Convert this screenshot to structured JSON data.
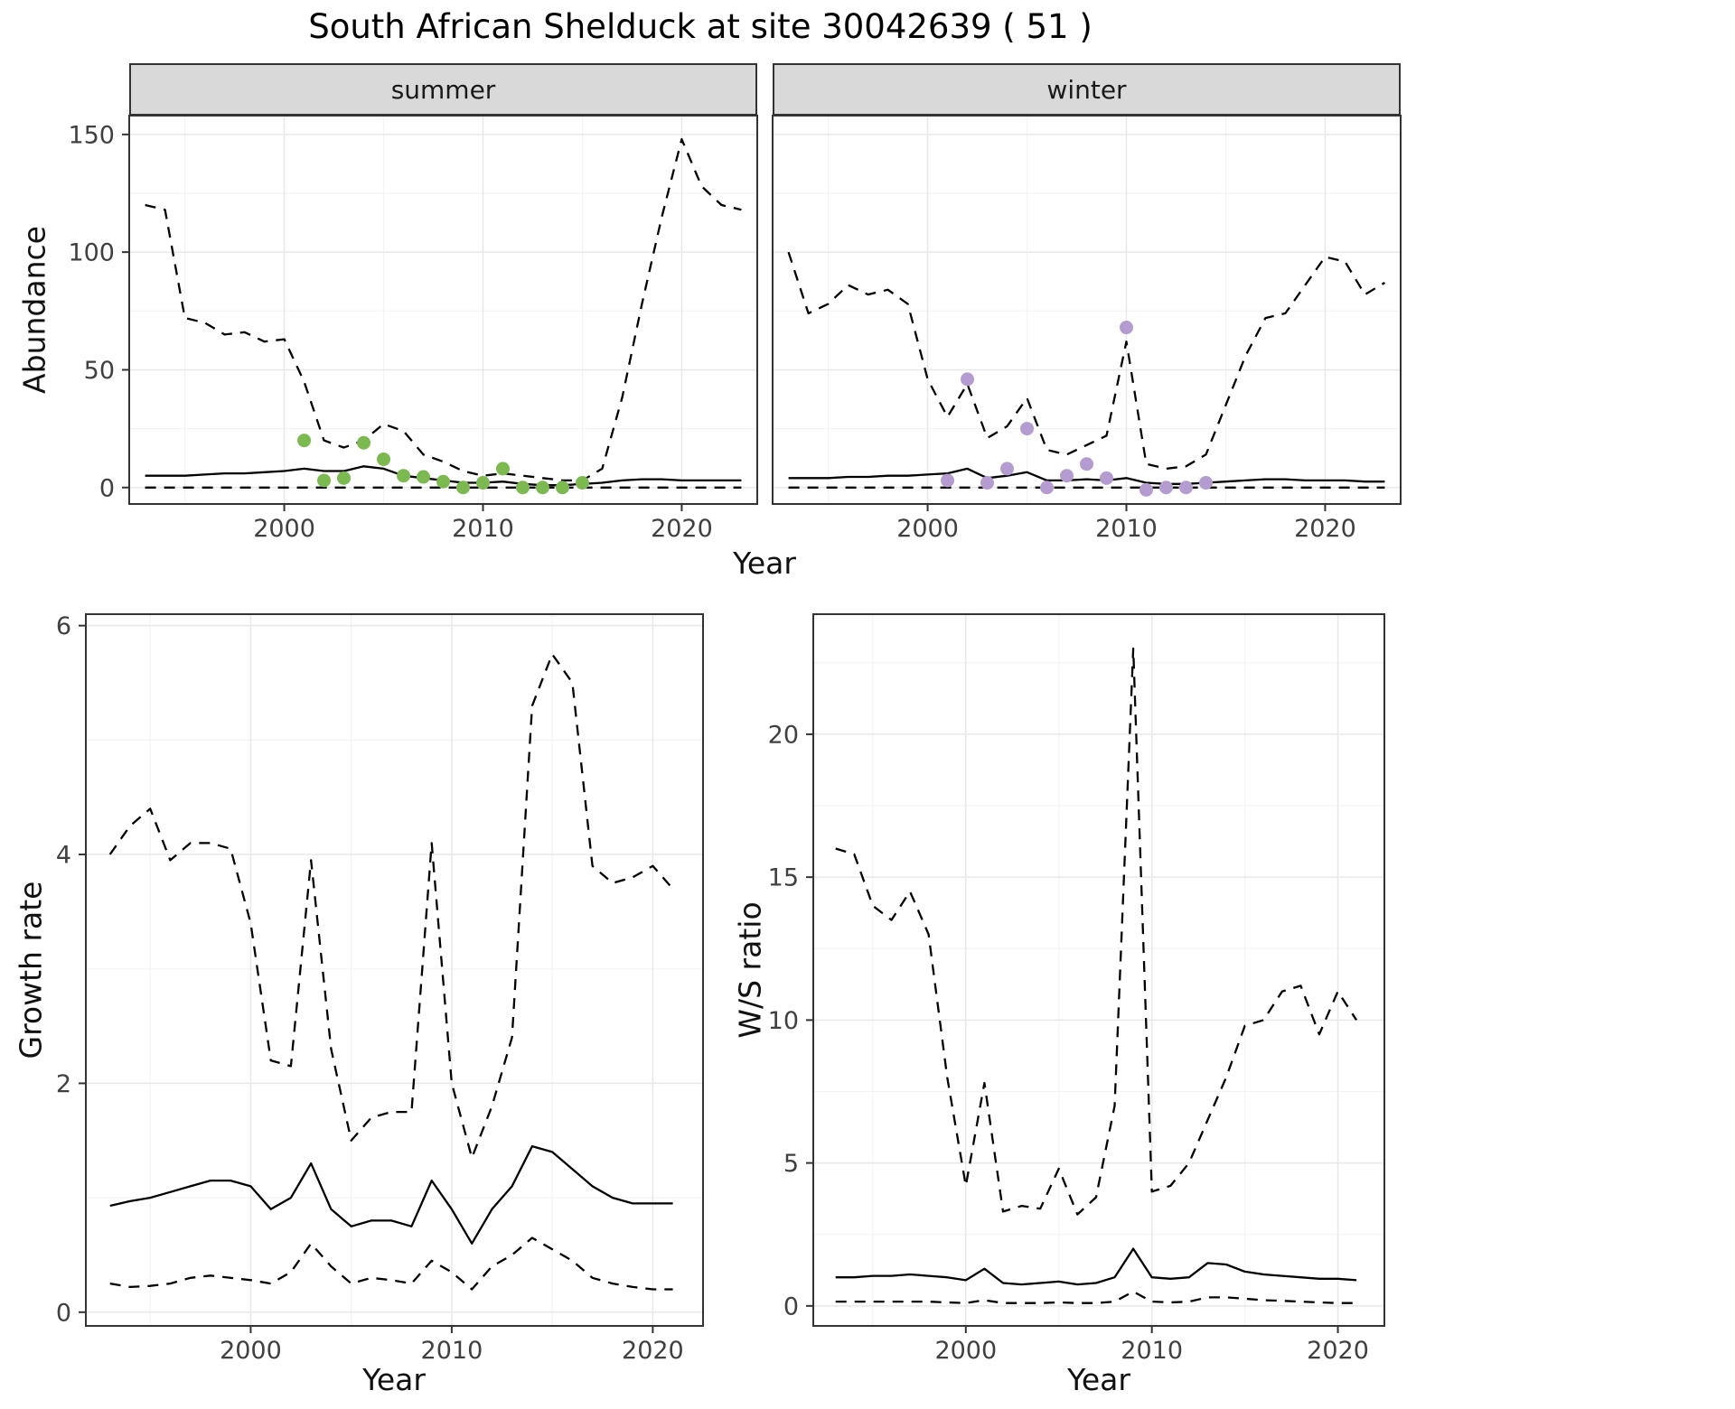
{
  "title": "South African Shelduck at site 30042639 ( 51 )",
  "style": {
    "accent_green": "#7cb950",
    "accent_purple": "#b49bd0",
    "line_color": "#000000",
    "panel_border": "#333333",
    "strip_fill": "#d9d9d9",
    "grid_major": "#e8e8e8",
    "grid_minor": "#f4f4f4",
    "tick_label_color": "#404040"
  },
  "top_figure": {
    "ylabel": "Abundance",
    "xlabel": "Year",
    "facets": [
      {
        "label": "summer"
      },
      {
        "label": "winter"
      }
    ]
  },
  "growth_figure": {
    "ylabel": "Growth rate",
    "xlabel": "Year"
  },
  "ws_figure": {
    "ylabel": "W/S ratio",
    "xlabel": "Year"
  },
  "chart_data": [
    {
      "id": "abundance-summer",
      "type": "line",
      "title": "summer",
      "xlabel": "Year",
      "ylabel": "Abundance",
      "xlim": [
        1992.2,
        2023.8
      ],
      "ylim": [
        -7,
        158
      ],
      "x_ticks": [
        2000,
        2010,
        2020
      ],
      "y_ticks": [
        0,
        50,
        100,
        150
      ],
      "x": [
        1993,
        1994,
        1995,
        1996,
        1997,
        1998,
        1999,
        2000,
        2001,
        2002,
        2003,
        2004,
        2005,
        2006,
        2007,
        2008,
        2009,
        2010,
        2011,
        2012,
        2013,
        2014,
        2015,
        2016,
        2017,
        2018,
        2019,
        2020,
        2021,
        2022,
        2023
      ],
      "series": [
        {
          "name": "upper_ci",
          "style": "dashed",
          "values": [
            120,
            118,
            72,
            70,
            65,
            66,
            62,
            63,
            45,
            20,
            17,
            20,
            27,
            24,
            14,
            11,
            7,
            5,
            6,
            5,
            4,
            3,
            3,
            8,
            38,
            78,
            115,
            148,
            128,
            120,
            118
          ]
        },
        {
          "name": "median",
          "style": "solid",
          "values": [
            5,
            5,
            5,
            5.5,
            6,
            6,
            6.5,
            7,
            8,
            7,
            7,
            9,
            8,
            5,
            4,
            3,
            2,
            2,
            2.5,
            1.5,
            1,
            1,
            1.5,
            2,
            3,
            3.5,
            3.5,
            3,
            3,
            3,
            3
          ]
        },
        {
          "name": "lower_ci",
          "style": "dashed",
          "values": [
            0,
            0,
            0,
            0,
            0,
            0,
            0,
            0,
            0,
            0,
            0,
            0,
            0,
            0,
            0,
            0,
            0,
            0,
            0,
            0,
            0,
            0,
            0,
            0,
            0,
            0,
            0,
            0,
            0,
            0,
            0
          ]
        }
      ],
      "points": {
        "name": "observed-counts-summer",
        "color": "#7cb950",
        "x": [
          2001,
          2002,
          2003,
          2004,
          2005,
          2006,
          2007,
          2008,
          2009,
          2010,
          2011,
          2012,
          2013,
          2014,
          2015
        ],
        "y": [
          20,
          3,
          4,
          19,
          12,
          5,
          4.5,
          2.5,
          0,
          2,
          8,
          0,
          0,
          0,
          2
        ]
      }
    },
    {
      "id": "abundance-winter",
      "type": "line",
      "title": "winter",
      "xlabel": "Year",
      "ylabel": "Abundance",
      "xlim": [
        1992.2,
        2023.8
      ],
      "ylim": [
        -7,
        158
      ],
      "x_ticks": [
        2000,
        2010,
        2020
      ],
      "y_ticks": [
        0,
        50,
        100,
        150
      ],
      "x": [
        1993,
        1994,
        1995,
        1996,
        1997,
        1998,
        1999,
        2000,
        2001,
        2002,
        2003,
        2004,
        2005,
        2006,
        2007,
        2008,
        2009,
        2010,
        2011,
        2012,
        2013,
        2014,
        2015,
        2016,
        2017,
        2018,
        2019,
        2020,
        2021,
        2022,
        2023
      ],
      "series": [
        {
          "name": "upper_ci",
          "style": "dashed",
          "values": [
            100,
            74,
            78,
            86,
            82,
            84,
            78,
            46,
            30,
            44,
            21,
            26,
            38,
            16,
            14,
            18,
            22,
            62,
            10,
            8,
            9,
            14,
            35,
            56,
            72,
            74,
            86,
            98,
            96,
            82,
            87
          ]
        },
        {
          "name": "median",
          "style": "solid",
          "values": [
            4,
            4,
            4,
            4.5,
            4.5,
            5,
            5,
            5.5,
            6,
            8,
            4,
            5,
            6.5,
            3,
            3,
            3.5,
            3,
            4,
            2,
            1.5,
            1.5,
            2,
            2.5,
            3,
            3.5,
            3.5,
            3,
            3,
            3,
            2.5,
            2.5
          ]
        },
        {
          "name": "lower_ci",
          "style": "dashed",
          "values": [
            0,
            0,
            0,
            0,
            0,
            0,
            0,
            0,
            0,
            0,
            0,
            0,
            0,
            0,
            0,
            0,
            0,
            0,
            0,
            0,
            0,
            0,
            0,
            0,
            0,
            0,
            0,
            0,
            0,
            0,
            0
          ]
        }
      ],
      "points": {
        "name": "observed-counts-winter",
        "color": "#b49bd0",
        "x": [
          2001,
          2002,
          2003,
          2004,
          2005,
          2006,
          2007,
          2008,
          2009,
          2010,
          2011,
          2012,
          2013,
          2014
        ],
        "y": [
          3,
          46,
          2,
          8,
          25,
          0,
          5,
          10,
          4,
          68,
          -1,
          0,
          0,
          2
        ]
      }
    },
    {
      "id": "growth-rate",
      "type": "line",
      "title": "Growth rate",
      "xlabel": "Year",
      "ylabel": "Growth rate",
      "xlim": [
        1991.8,
        2022.5
      ],
      "ylim": [
        -0.12,
        6.1
      ],
      "x_ticks": [
        2000,
        2010,
        2020
      ],
      "y_ticks": [
        0,
        2,
        4,
        6
      ],
      "x": [
        1993,
        1994,
        1995,
        1996,
        1997,
        1998,
        1999,
        2000,
        2001,
        2002,
        2003,
        2004,
        2005,
        2006,
        2007,
        2008,
        2009,
        2010,
        2011,
        2012,
        2013,
        2014,
        2015,
        2016,
        2017,
        2018,
        2019,
        2020,
        2021
      ],
      "series": [
        {
          "name": "upper_ci",
          "style": "dashed",
          "values": [
            4.0,
            4.25,
            4.4,
            3.95,
            4.1,
            4.1,
            4.05,
            3.4,
            2.2,
            2.15,
            3.95,
            2.3,
            1.5,
            1.7,
            1.75,
            1.75,
            4.1,
            2.0,
            1.35,
            1.8,
            2.4,
            5.3,
            5.75,
            5.5,
            3.9,
            3.75,
            3.8,
            3.9,
            3.7
          ]
        },
        {
          "name": "median",
          "style": "solid",
          "values": [
            0.93,
            0.97,
            1.0,
            1.05,
            1.1,
            1.15,
            1.15,
            1.1,
            0.9,
            1.0,
            1.3,
            0.9,
            0.75,
            0.8,
            0.8,
            0.75,
            1.15,
            0.9,
            0.6,
            0.9,
            1.1,
            1.45,
            1.4,
            1.25,
            1.1,
            1.0,
            0.95,
            0.95,
            0.95
          ]
        },
        {
          "name": "lower_ci",
          "style": "dashed",
          "values": [
            0.25,
            0.22,
            0.23,
            0.25,
            0.3,
            0.32,
            0.3,
            0.28,
            0.25,
            0.35,
            0.6,
            0.4,
            0.25,
            0.3,
            0.28,
            0.25,
            0.45,
            0.35,
            0.2,
            0.4,
            0.5,
            0.65,
            0.55,
            0.45,
            0.3,
            0.25,
            0.22,
            0.2,
            0.2
          ]
        }
      ]
    },
    {
      "id": "ws-ratio",
      "type": "line",
      "title": "W/S ratio",
      "xlabel": "Year",
      "ylabel": "W/S ratio",
      "xlim": [
        1991.8,
        2022.5
      ],
      "ylim": [
        -0.7,
        24.2
      ],
      "x_ticks": [
        2000,
        2010,
        2020
      ],
      "y_ticks": [
        0,
        5,
        10,
        15,
        20
      ],
      "x": [
        1993,
        1994,
        1995,
        1996,
        1997,
        1998,
        1999,
        2000,
        2001,
        2002,
        2003,
        2004,
        2005,
        2006,
        2007,
        2008,
        2009,
        2010,
        2011,
        2012,
        2013,
        2014,
        2015,
        2016,
        2017,
        2018,
        2019,
        2020,
        2021
      ],
      "series": [
        {
          "name": "upper_ci",
          "style": "dashed",
          "values": [
            16,
            15.8,
            14,
            13.5,
            14.5,
            13,
            8,
            4.2,
            7.8,
            3.3,
            3.5,
            3.4,
            4.8,
            3.2,
            3.8,
            7.0,
            23,
            4.0,
            4.2,
            5.0,
            6.5,
            8.0,
            9.8,
            10.0,
            11.0,
            11.2,
            9.5,
            11.0,
            10.0
          ]
        },
        {
          "name": "median",
          "style": "solid",
          "values": [
            1.0,
            1.0,
            1.05,
            1.05,
            1.1,
            1.05,
            1.0,
            0.9,
            1.3,
            0.8,
            0.75,
            0.8,
            0.85,
            0.75,
            0.8,
            1.0,
            2.0,
            1.0,
            0.95,
            1.0,
            1.5,
            1.45,
            1.2,
            1.1,
            1.05,
            1.0,
            0.95,
            0.95,
            0.9
          ]
        },
        {
          "name": "lower_ci",
          "style": "dashed",
          "values": [
            0.15,
            0.15,
            0.15,
            0.15,
            0.15,
            0.15,
            0.12,
            0.1,
            0.2,
            0.1,
            0.1,
            0.1,
            0.12,
            0.1,
            0.1,
            0.15,
            0.5,
            0.15,
            0.12,
            0.15,
            0.3,
            0.3,
            0.25,
            0.2,
            0.18,
            0.15,
            0.12,
            0.1,
            0.1
          ]
        }
      ]
    }
  ]
}
